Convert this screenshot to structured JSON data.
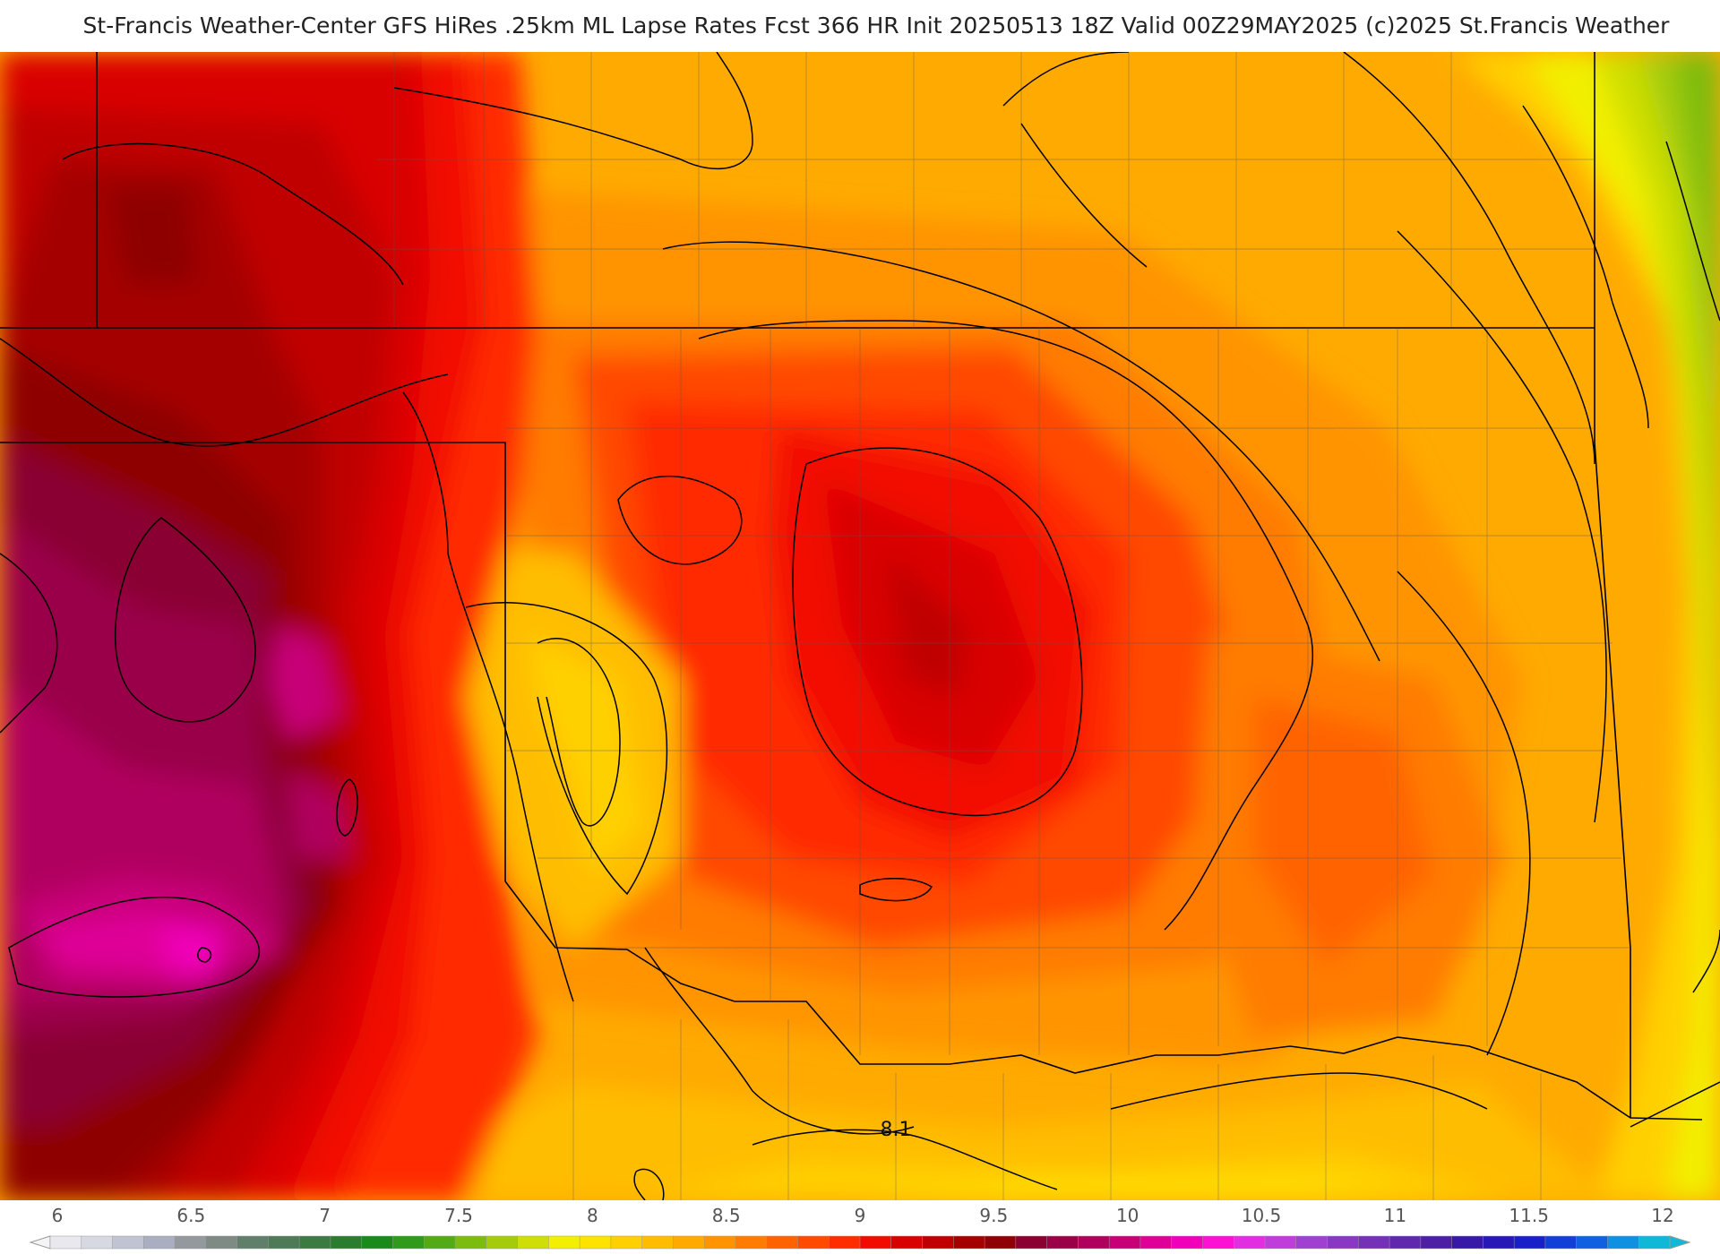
{
  "title": "St-Francis Weather-Center GFS HiRes .25km ML Lapse Rates  Fcst 366 HR Init 20250513 18Z  Valid 00Z29MAY2025    (c)2025 St.Francis Weather",
  "contour_labels": [
    "8.1"
  ],
  "legend": {
    "ticks": [
      "6",
      "6.5",
      "7",
      "7.5",
      "8",
      "8.5",
      "9",
      "9.5",
      "10",
      "10.5",
      "11",
      "11.5",
      "12"
    ],
    "min": 6,
    "max": 12,
    "colors": [
      "#e8e8ee",
      "#d6d8e2",
      "#c0c4d2",
      "#a9aec0",
      "#94999e",
      "#7e8a84",
      "#5f7f6a",
      "#4f7a58",
      "#3b7a40",
      "#2a7d2e",
      "#1a8a1a",
      "#2f9a1c",
      "#52ab16",
      "#7cbc10",
      "#a5cc0c",
      "#cede06",
      "#f2ef00",
      "#ffe300",
      "#ffd000",
      "#ffbd00",
      "#ffaa00",
      "#ff9400",
      "#ff7c00",
      "#ff6300",
      "#ff4a00",
      "#ff2c00",
      "#f20b00",
      "#d90000",
      "#c00000",
      "#a50000",
      "#8e0006",
      "#8a0030",
      "#9a0048",
      "#b0005e",
      "#c80078",
      "#df0097",
      "#f000b8",
      "#fb10d4",
      "#e02ee0",
      "#c03ddc",
      "#a040d0",
      "#8a38c4",
      "#7530b8",
      "#6028ac",
      "#4c1fa4",
      "#3818a6",
      "#2818b6",
      "#1a20c8",
      "#1040d8",
      "#1060e0",
      "#1090e0",
      "#10b8d8"
    ]
  }
}
